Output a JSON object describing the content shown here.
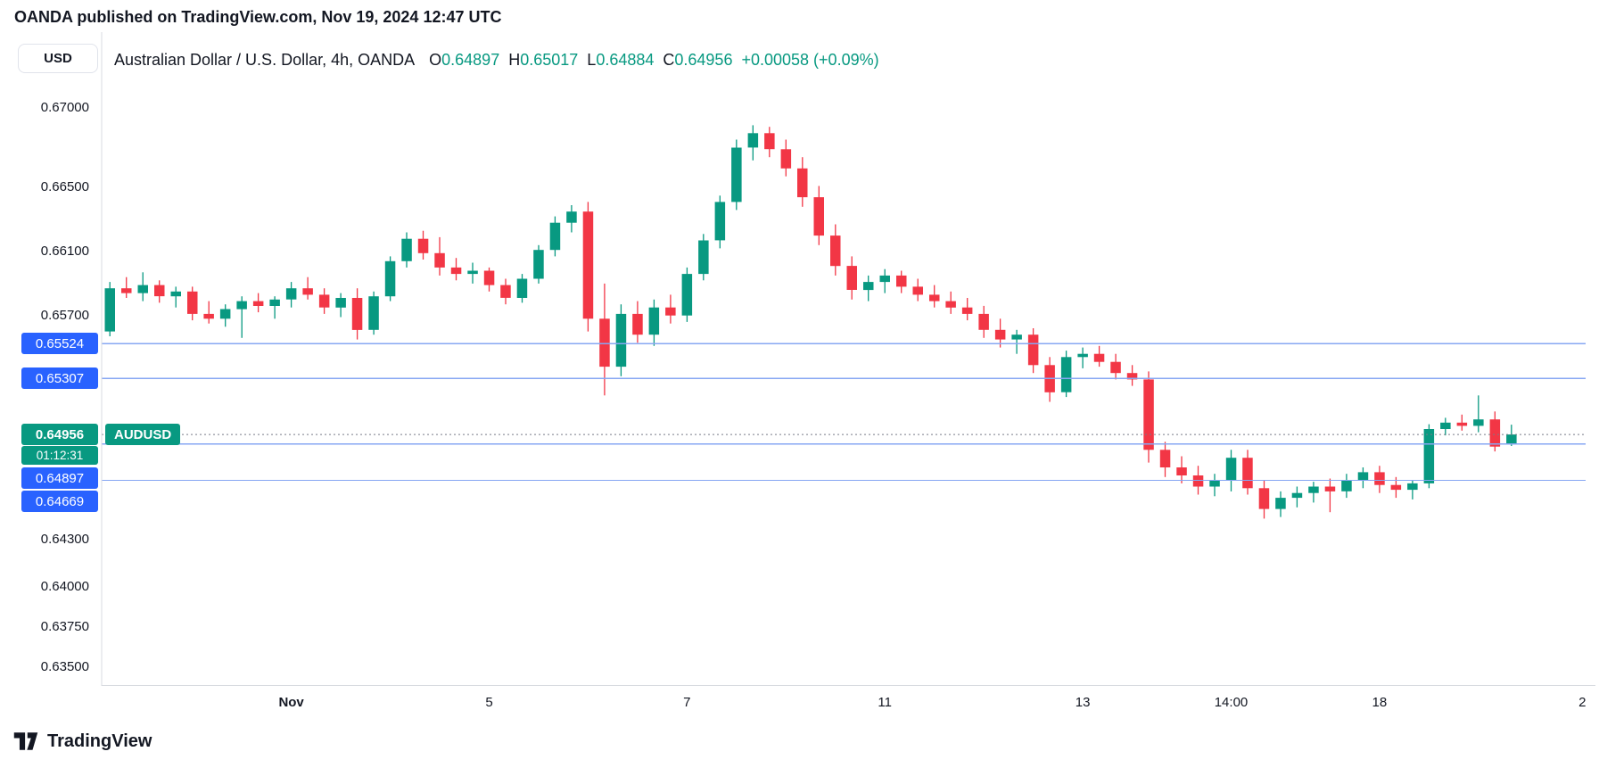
{
  "header": {
    "attribution": "OANDA published on TradingView.com, Nov 19, 2024 12:47 UTC"
  },
  "price_scale": {
    "currency_button": "USD"
  },
  "legend": {
    "title": "Australian Dollar / U.S. Dollar, 4h, OANDA",
    "open_label": "O",
    "open": "0.64897",
    "high_label": "H",
    "high": "0.65017",
    "low_label": "L",
    "low": "0.64884",
    "close_label": "C",
    "close": "0.64956",
    "change": "+0.00058 (+0.09%)"
  },
  "footer": {
    "brand": "TradingView"
  },
  "colors": {
    "up": "#089981",
    "down": "#f23645",
    "badge_blue": "#2962ff",
    "line_blue": "#87a7f3",
    "axis_text": "#131722"
  },
  "chart_data": {
    "type": "candlestick",
    "symbol": "AUDUSD",
    "timeframe": "4h",
    "exchange": "OANDA",
    "title": "Australian Dollar / U.S. Dollar, 4h, OANDA",
    "ohlc": {
      "open": 0.64897,
      "high": 0.65017,
      "low": 0.64884,
      "close": 0.64956,
      "change": "+0.00058 (+0.09%)"
    },
    "y_axis": {
      "min": 0.634,
      "max": 0.6745,
      "ticks": [
        "0.67000",
        "0.66500",
        "0.66100",
        "0.65700",
        "0.64300",
        "0.64000",
        "0.63750",
        "0.63500"
      ]
    },
    "slots": 90,
    "x_ticks": [
      {
        "label": "Nov",
        "slot": 11,
        "bold": true
      },
      {
        "label": "5",
        "slot": 23
      },
      {
        "label": "7",
        "slot": 35
      },
      {
        "label": "11",
        "slot": 47
      },
      {
        "label": "13",
        "slot": 59
      },
      {
        "label": "14:00",
        "slot": 68
      },
      {
        "label": "18",
        "slot": 77
      },
      {
        "label": "2",
        "slot": 89.3
      }
    ],
    "price_lines": [
      {
        "price": 0.65524,
        "label": "0.65524"
      },
      {
        "price": 0.65307,
        "label": "0.65307"
      },
      {
        "price": 0.64897,
        "label": "0.64897"
      },
      {
        "price": 0.64669,
        "label": "0.64669"
      }
    ],
    "current_price": {
      "price": 0.64956,
      "label": "0.64956",
      "symbol_tag": "AUDUSD",
      "countdown": "01:12:31"
    },
    "candles": [
      [
        0.656,
        0.6591,
        0.6557,
        0.6587
      ],
      [
        0.6587,
        0.6594,
        0.6581,
        0.6584
      ],
      [
        0.6584,
        0.6597,
        0.6579,
        0.6589
      ],
      [
        0.6589,
        0.6592,
        0.6578,
        0.6582
      ],
      [
        0.6582,
        0.6588,
        0.6575,
        0.6585
      ],
      [
        0.6585,
        0.6588,
        0.6567,
        0.6571
      ],
      [
        0.6571,
        0.6579,
        0.6565,
        0.6568
      ],
      [
        0.6568,
        0.6577,
        0.6563,
        0.6574
      ],
      [
        0.6574,
        0.6582,
        0.6556,
        0.6579
      ],
      [
        0.6579,
        0.6584,
        0.6572,
        0.6576
      ],
      [
        0.6576,
        0.6582,
        0.6568,
        0.658
      ],
      [
        0.658,
        0.6591,
        0.6575,
        0.6587
      ],
      [
        0.6587,
        0.6594,
        0.658,
        0.6583
      ],
      [
        0.6583,
        0.6587,
        0.6571,
        0.6575
      ],
      [
        0.6575,
        0.6584,
        0.6569,
        0.6581
      ],
      [
        0.6581,
        0.6587,
        0.6555,
        0.6561
      ],
      [
        0.6561,
        0.6585,
        0.6558,
        0.6582
      ],
      [
        0.6582,
        0.6607,
        0.6579,
        0.6604
      ],
      [
        0.6604,
        0.6622,
        0.66,
        0.6618
      ],
      [
        0.6618,
        0.6623,
        0.6605,
        0.6609
      ],
      [
        0.6609,
        0.6619,
        0.6595,
        0.66
      ],
      [
        0.66,
        0.6606,
        0.6592,
        0.6596
      ],
      [
        0.6596,
        0.6603,
        0.659,
        0.6598
      ],
      [
        0.6598,
        0.66,
        0.6585,
        0.6589
      ],
      [
        0.6589,
        0.6593,
        0.6577,
        0.6581
      ],
      [
        0.6581,
        0.6596,
        0.6578,
        0.6593
      ],
      [
        0.6593,
        0.6614,
        0.659,
        0.6611
      ],
      [
        0.6611,
        0.6632,
        0.6607,
        0.6628
      ],
      [
        0.6628,
        0.6639,
        0.6622,
        0.6635
      ],
      [
        0.6635,
        0.6641,
        0.656,
        0.6568
      ],
      [
        0.6568,
        0.659,
        0.652,
        0.6538
      ],
      [
        0.6538,
        0.6577,
        0.6532,
        0.6571
      ],
      [
        0.6571,
        0.6579,
        0.6553,
        0.6558
      ],
      [
        0.6558,
        0.658,
        0.6551,
        0.6575
      ],
      [
        0.6575,
        0.6583,
        0.6565,
        0.657
      ],
      [
        0.657,
        0.66,
        0.6566,
        0.6596
      ],
      [
        0.6596,
        0.6621,
        0.6592,
        0.6617
      ],
      [
        0.6617,
        0.6645,
        0.6612,
        0.6641
      ],
      [
        0.6641,
        0.668,
        0.6636,
        0.6675
      ],
      [
        0.6675,
        0.6689,
        0.6667,
        0.6684
      ],
      [
        0.6684,
        0.6688,
        0.6669,
        0.6674
      ],
      [
        0.6674,
        0.668,
        0.6657,
        0.6662
      ],
      [
        0.6662,
        0.6669,
        0.6638,
        0.6644
      ],
      [
        0.6644,
        0.6651,
        0.6614,
        0.662
      ],
      [
        0.662,
        0.6627,
        0.6595,
        0.6601
      ],
      [
        0.6601,
        0.6607,
        0.658,
        0.6586
      ],
      [
        0.6586,
        0.6595,
        0.6579,
        0.6591
      ],
      [
        0.6591,
        0.6599,
        0.6584,
        0.6595
      ],
      [
        0.6595,
        0.6598,
        0.6584,
        0.6588
      ],
      [
        0.6588,
        0.6593,
        0.6579,
        0.6583
      ],
      [
        0.6583,
        0.6589,
        0.6575,
        0.6579
      ],
      [
        0.6579,
        0.6585,
        0.6571,
        0.6575
      ],
      [
        0.6575,
        0.6581,
        0.6567,
        0.6571
      ],
      [
        0.6571,
        0.6576,
        0.6556,
        0.6561
      ],
      [
        0.6561,
        0.6568,
        0.655,
        0.6555
      ],
      [
        0.6555,
        0.6561,
        0.6546,
        0.6558
      ],
      [
        0.6558,
        0.6562,
        0.6534,
        0.6539
      ],
      [
        0.6539,
        0.6544,
        0.6516,
        0.6522
      ],
      [
        0.6522,
        0.6548,
        0.6519,
        0.6544
      ],
      [
        0.6544,
        0.655,
        0.6537,
        0.6546
      ],
      [
        0.6546,
        0.6551,
        0.6538,
        0.6541
      ],
      [
        0.6541,
        0.6546,
        0.653,
        0.6534
      ],
      [
        0.6534,
        0.6539,
        0.6526,
        0.653
      ],
      [
        0.653,
        0.6535,
        0.6478,
        0.6486
      ],
      [
        0.6486,
        0.6491,
        0.6469,
        0.6475
      ],
      [
        0.6475,
        0.6482,
        0.6465,
        0.647
      ],
      [
        0.647,
        0.6476,
        0.6458,
        0.6463
      ],
      [
        0.6463,
        0.6471,
        0.6457,
        0.6467
      ],
      [
        0.6467,
        0.6486,
        0.646,
        0.6481
      ],
      [
        0.6481,
        0.6486,
        0.6458,
        0.6462
      ],
      [
        0.6462,
        0.6467,
        0.6443,
        0.6449
      ],
      [
        0.6449,
        0.646,
        0.6444,
        0.6456
      ],
      [
        0.6456,
        0.6463,
        0.645,
        0.6459
      ],
      [
        0.6459,
        0.6466,
        0.6453,
        0.6463
      ],
      [
        0.6463,
        0.6468,
        0.6447,
        0.646
      ],
      [
        0.646,
        0.6471,
        0.6456,
        0.6467
      ],
      [
        0.6467,
        0.6475,
        0.6462,
        0.6472
      ],
      [
        0.6472,
        0.6476,
        0.6459,
        0.6464
      ],
      [
        0.6464,
        0.6469,
        0.6456,
        0.6461
      ],
      [
        0.6461,
        0.6467,
        0.6455,
        0.6465
      ],
      [
        0.6465,
        0.6502,
        0.6462,
        0.6499
      ],
      [
        0.6499,
        0.6506,
        0.6495,
        0.6503
      ],
      [
        0.6503,
        0.6508,
        0.6498,
        0.6501
      ],
      [
        0.6501,
        0.652,
        0.6497,
        0.6505
      ],
      [
        0.6505,
        0.651,
        0.6485,
        0.6488
      ],
      [
        0.64897,
        0.65017,
        0.64884,
        0.64956
      ]
    ]
  }
}
